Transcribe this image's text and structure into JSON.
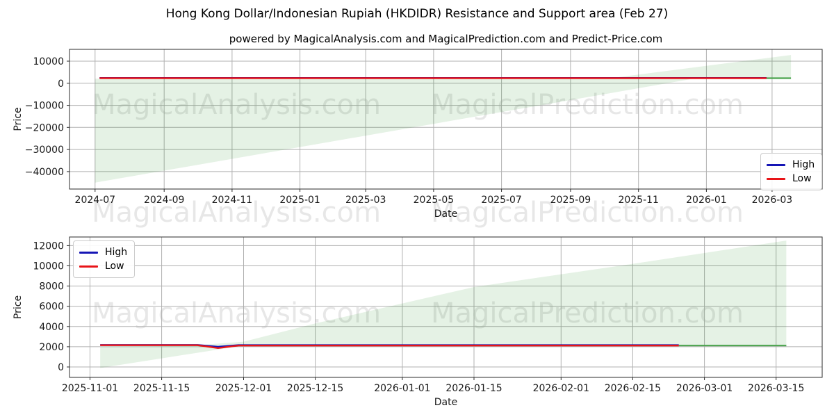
{
  "figure": {
    "title": "Hong Kong Dollar/Indonesian Rupiah (HKDIDR) Resistance and Support area (Feb 27)",
    "subtitle": "powered by MagicalAnalysis.com and MagicalPrediction.com and Predict-Price.com"
  },
  "watermarks": {
    "texts": [
      "MagicalAnalysis.com",
      "MagicalPrediction.com"
    ],
    "color": "rgba(105,105,105,0.16)"
  },
  "legend": {
    "items": [
      {
        "label": "High",
        "color": "#1515b5"
      },
      {
        "label": "Low",
        "color": "#e81418"
      }
    ]
  },
  "colors": {
    "high": "#1515b5",
    "low": "#e81418",
    "support": "#4aa34d",
    "area_fill": "rgba(0,128,0,0.10)",
    "grid": "#b0b0b0",
    "spine": "#2b2b2b",
    "text": "#1a1a1a"
  },
  "chart_data": [
    {
      "type": "line",
      "name": "full-history",
      "xlabel": "Date",
      "ylabel": "Price",
      "grid": true,
      "legend_loc": "lower right",
      "xlim": [
        "2024-06-08",
        "2026-04-15"
      ],
      "ylim": [
        -47900,
        15350
      ],
      "xticks": [
        {
          "pos": "2024-07-01",
          "label": "2024-07"
        },
        {
          "pos": "2024-09-01",
          "label": "2024-09"
        },
        {
          "pos": "2024-11-01",
          "label": "2024-11"
        },
        {
          "pos": "2025-01-01",
          "label": "2025-01"
        },
        {
          "pos": "2025-03-01",
          "label": "2025-03"
        },
        {
          "pos": "2025-05-01",
          "label": "2025-05"
        },
        {
          "pos": "2025-07-01",
          "label": "2025-07"
        },
        {
          "pos": "2025-09-01",
          "label": "2025-09"
        },
        {
          "pos": "2025-11-01",
          "label": "2025-11"
        },
        {
          "pos": "2026-01-01",
          "label": "2026-01"
        },
        {
          "pos": "2026-03-01",
          "label": "2026-03"
        }
      ],
      "yticks": {
        "values": [
          10000,
          0,
          -10000,
          -20000,
          -30000,
          -40000
        ],
        "labels": [
          "10000",
          "0",
          "−10000",
          "−20000",
          "−30000",
          "−40000"
        ]
      },
      "area": {
        "upper": [
          [
            "2024-07-01",
            2050
          ],
          [
            "2025-10-03",
            2050
          ],
          [
            "2026-03-18",
            12800
          ]
        ],
        "lower": [
          [
            "2024-07-01",
            -45000
          ],
          [
            "2025-12-23",
            2300
          ],
          [
            "2026-03-18",
            2300
          ]
        ]
      },
      "series": [
        {
          "name": "Support",
          "color_key": "support",
          "width": 2.2,
          "points": [
            [
              "2026-02-24",
              2300
            ],
            [
              "2026-03-18",
              2300
            ]
          ]
        },
        {
          "name": "High",
          "color_key": "high",
          "width": 2.4,
          "points": [
            [
              "2024-07-05",
              2400
            ],
            [
              "2026-02-24",
              2400
            ]
          ]
        },
        {
          "name": "Low",
          "color_key": "low",
          "width": 2.4,
          "points": [
            [
              "2024-07-05",
              2300
            ],
            [
              "2026-02-24",
              2300
            ]
          ]
        }
      ]
    },
    {
      "type": "line",
      "name": "recent-and-forecast",
      "xlabel": "Date",
      "ylabel": "Price",
      "grid": true,
      "legend_loc": "upper left",
      "xlim": [
        "2025-10-28",
        "2026-03-24"
      ],
      "ylim": [
        -1030,
        12850
      ],
      "xticks": [
        {
          "pos": "2025-11-01",
          "label": "2025-11-01"
        },
        {
          "pos": "2025-11-15",
          "label": "2025-11-15"
        },
        {
          "pos": "2025-12-01",
          "label": "2025-12-01"
        },
        {
          "pos": "2025-12-15",
          "label": "2025-12-15"
        },
        {
          "pos": "2026-01-01",
          "label": "2026-01-01"
        },
        {
          "pos": "2026-01-15",
          "label": "2026-01-15"
        },
        {
          "pos": "2026-02-01",
          "label": "2026-02-01"
        },
        {
          "pos": "2026-02-15",
          "label": "2026-02-15"
        },
        {
          "pos": "2026-03-01",
          "label": "2026-03-01"
        },
        {
          "pos": "2026-03-15",
          "label": "2026-03-15"
        }
      ],
      "yticks": {
        "values": [
          0,
          2000,
          4000,
          6000,
          8000,
          10000,
          12000
        ],
        "labels": [
          "0",
          "2000",
          "4000",
          "6000",
          "8000",
          "10000",
          "12000"
        ]
      },
      "area": {
        "upper": [
          [
            "2025-11-03",
            2000
          ],
          [
            "2025-11-20",
            2080
          ],
          [
            "2025-12-01",
            2500
          ],
          [
            "2025-12-15",
            4300
          ],
          [
            "2026-01-15",
            7900
          ],
          [
            "2026-02-15",
            10200
          ],
          [
            "2026-03-17",
            12500
          ]
        ],
        "lower": [
          [
            "2025-11-03",
            -100
          ],
          [
            "2025-12-01",
            2120
          ],
          [
            "2026-03-17",
            2120
          ]
        ]
      },
      "series": [
        {
          "name": "Support",
          "color_key": "support",
          "width": 2.2,
          "points": [
            [
              "2026-02-24",
              2120
            ],
            [
              "2026-03-17",
              2120
            ]
          ]
        },
        {
          "name": "High",
          "color_key": "high",
          "width": 2.4,
          "points": [
            [
              "2025-11-03",
              2180
            ],
            [
              "2025-11-22",
              2180
            ],
            [
              "2025-11-26",
              1990
            ],
            [
              "2025-11-30",
              2160
            ],
            [
              "2026-02-24",
              2160
            ]
          ]
        },
        {
          "name": "Low",
          "color_key": "low",
          "width": 2.4,
          "points": [
            [
              "2025-11-03",
              2150
            ],
            [
              "2025-11-22",
              2150
            ],
            [
              "2025-11-26",
              1870
            ],
            [
              "2025-11-30",
              2120
            ],
            [
              "2026-02-24",
              2120
            ]
          ]
        }
      ]
    }
  ]
}
